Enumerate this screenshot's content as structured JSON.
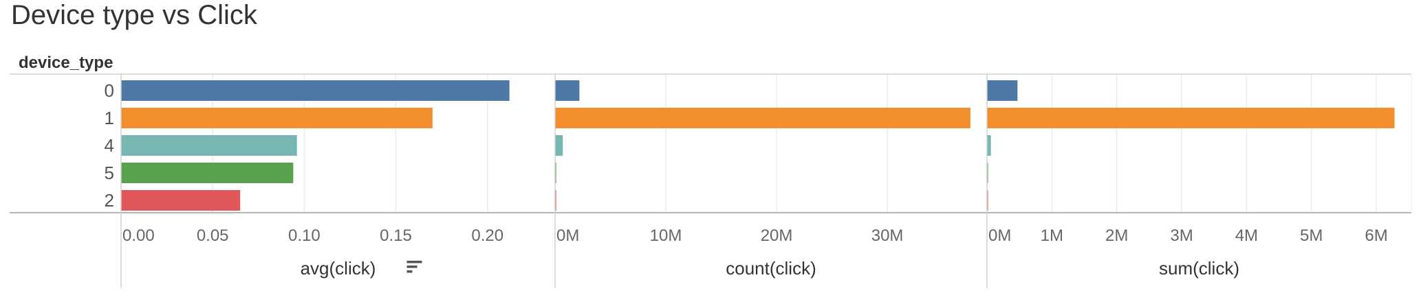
{
  "title": "Device type vs Click",
  "chart_data": {
    "type": "bar",
    "orientation": "horizontal",
    "row_header": "device_type",
    "categories": [
      "0",
      "1",
      "4",
      "5",
      "2"
    ],
    "colors": [
      "#4e79a7",
      "#f28e2b",
      "#76b7b2",
      "#59a14f",
      "#e15759"
    ],
    "grid": true,
    "panels": [
      {
        "label": "avg(click)",
        "sort_icon": "sort-icon",
        "xlim": [
          0,
          0.2369
        ],
        "ticks": [
          0,
          0.05,
          0.1,
          0.15,
          0.2
        ],
        "tick_labels": [
          "0.00",
          "0.05",
          "0.10",
          "0.15",
          "0.20"
        ],
        "values": [
          0.212,
          0.17,
          0.096,
          0.094,
          0.065
        ]
      },
      {
        "label": "count(click)",
        "xlim": [
          0,
          39000000
        ],
        "ticks": [
          0,
          10000000,
          20000000,
          30000000
        ],
        "tick_labels": [
          "0M",
          "10M",
          "20M",
          "30M"
        ],
        "values": [
          2200000,
          37500000,
          700000,
          100000,
          100000
        ]
      },
      {
        "label": "sum(click)",
        "xlim": [
          0,
          6540000
        ],
        "ticks": [
          0,
          1000000,
          2000000,
          3000000,
          4000000,
          5000000,
          6000000
        ],
        "tick_labels": [
          "0M",
          "1M",
          "2M",
          "3M",
          "4M",
          "5M",
          "6M"
        ],
        "values": [
          470000,
          6280000,
          60000,
          10000,
          10000
        ]
      }
    ]
  }
}
